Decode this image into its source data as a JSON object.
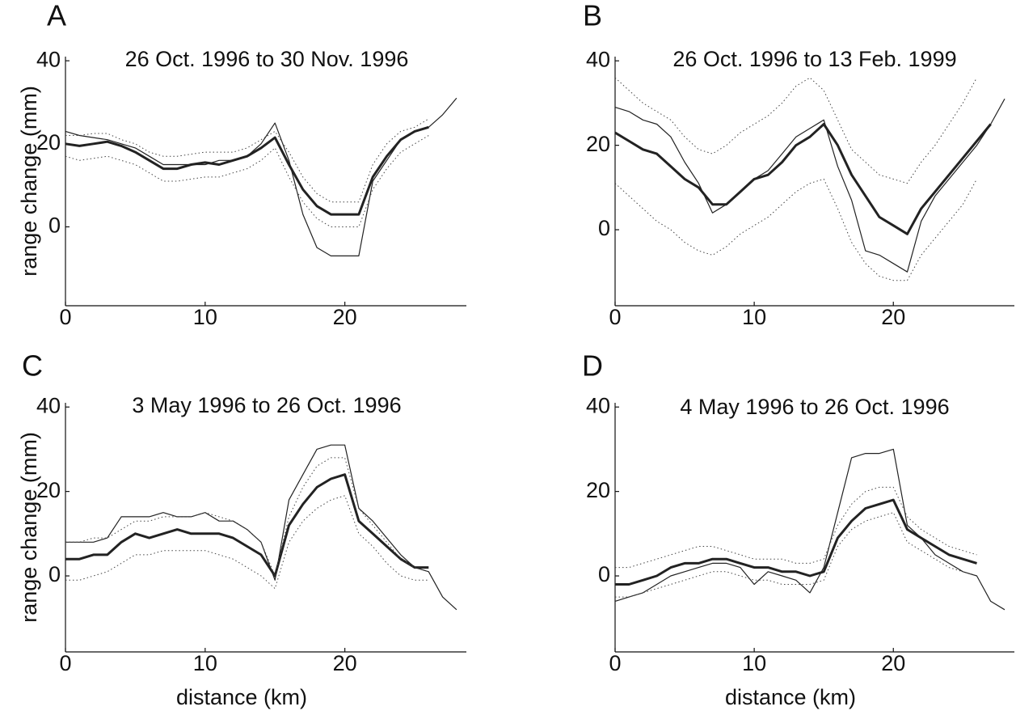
{
  "chart_data": [
    {
      "type": "line",
      "panel": "A",
      "title": "26 Oct. 1996 to 30 Nov. 1996",
      "y_label": "range change (mm)",
      "x": [
        0,
        1,
        2,
        3,
        4,
        5,
        6,
        7,
        8,
        9,
        10,
        11,
        12,
        13,
        14,
        15,
        16,
        17,
        18,
        19,
        20,
        21,
        22,
        23,
        24,
        25,
        26,
        27,
        28
      ],
      "xlim": [
        0,
        28.7
      ],
      "xticks": [
        0,
        10,
        20
      ],
      "ylim": [
        -19,
        41
      ],
      "yticks": [
        0,
        20,
        40
      ],
      "series": [
        {
          "color": "#222222",
          "linewidth": 1.2,
          "style": "solid",
          "values": [
            23,
            22,
            21.5,
            21,
            20,
            19,
            17,
            15,
            15,
            15,
            15,
            16,
            16,
            17,
            20,
            25,
            16,
            3,
            -5,
            -7,
            -7,
            -7,
            11,
            16,
            21,
            23,
            24,
            27,
            31
          ]
        },
        {
          "color": "#222222",
          "linewidth": 3,
          "style": "solid",
          "values": [
            20,
            19.5,
            20,
            20.5,
            19.5,
            18,
            16,
            14,
            14,
            15,
            15.5,
            15,
            16,
            17,
            19,
            21.5,
            15,
            9,
            5,
            3,
            3,
            3,
            12,
            17,
            21,
            23,
            24,
            null,
            null
          ]
        },
        {
          "color": "#444444",
          "linewidth": 1,
          "style": "dotted",
          "values": [
            22,
            22,
            22.5,
            22.5,
            21,
            20,
            18,
            17,
            17,
            17.5,
            18,
            18,
            18,
            19,
            21,
            23,
            18,
            12,
            8,
            6,
            6,
            6,
            15,
            20,
            23,
            24,
            26,
            null,
            null
          ]
        },
        {
          "color": "#444444",
          "linewidth": 1,
          "style": "dotted",
          "values": [
            17,
            16,
            16.5,
            17,
            16,
            15,
            13,
            11,
            11,
            11.5,
            12,
            12,
            13,
            14,
            16,
            19,
            12,
            6,
            2,
            0,
            0,
            0,
            9,
            14,
            18,
            20,
            22,
            null,
            null
          ]
        }
      ]
    },
    {
      "type": "line",
      "panel": "B",
      "title": "26 Oct. 1996 to 13 Feb. 1999",
      "x": [
        0,
        1,
        2,
        3,
        4,
        5,
        6,
        7,
        8,
        9,
        10,
        11,
        12,
        13,
        14,
        15,
        16,
        17,
        18,
        19,
        20,
        21,
        22,
        23,
        24,
        25,
        26,
        27,
        28
      ],
      "xlim": [
        0,
        28.7
      ],
      "xticks": [
        0,
        10,
        20
      ],
      "ylim": [
        -18,
        41
      ],
      "yticks": [
        0,
        20,
        40
      ],
      "series": [
        {
          "color": "#222222",
          "linewidth": 1.2,
          "style": "solid",
          "values": [
            29,
            28,
            26,
            25,
            22,
            16,
            11,
            4,
            6,
            9,
            12,
            14,
            18,
            22,
            24,
            26,
            15,
            7,
            -5,
            -6,
            -8,
            -10,
            2,
            8,
            12,
            16,
            20,
            25,
            31
          ]
        },
        {
          "color": "#222222",
          "linewidth": 3,
          "style": "solid",
          "values": [
            23,
            21,
            19,
            18,
            15,
            12,
            10,
            6,
            6,
            9,
            12,
            13,
            16,
            20,
            22,
            25,
            20,
            13,
            8,
            3,
            1,
            -1,
            5,
            9,
            13,
            17,
            21,
            25,
            null
          ]
        },
        {
          "color": "#444444",
          "linewidth": 1,
          "style": "dotted",
          "values": [
            36,
            33,
            30,
            28,
            26,
            22,
            19,
            18,
            20,
            23,
            25,
            27,
            30,
            34,
            36,
            33,
            26,
            19,
            16,
            13,
            12,
            11,
            16,
            20,
            25,
            30,
            36,
            null,
            null
          ]
        },
        {
          "color": "#444444",
          "linewidth": 1,
          "style": "dotted",
          "values": [
            11,
            8,
            5,
            2,
            0,
            -3,
            -5,
            -6,
            -4,
            -1,
            1,
            3,
            6,
            9,
            11,
            12,
            5,
            -3,
            -8,
            -11,
            -12,
            -12,
            -6,
            -2,
            2,
            6,
            12,
            null,
            null
          ]
        }
      ]
    },
    {
      "type": "line",
      "panel": "C",
      "title": "3 May 1996 to 26 Oct. 1996",
      "y_label": "range change (mm)",
      "x_label": "distance (km)",
      "x": [
        0,
        1,
        2,
        3,
        4,
        5,
        6,
        7,
        8,
        9,
        10,
        11,
        12,
        13,
        14,
        15,
        16,
        17,
        18,
        19,
        20,
        21,
        22,
        23,
        24,
        25,
        26,
        27,
        28
      ],
      "xlim": [
        0,
        28.7
      ],
      "xticks": [
        0,
        10,
        20
      ],
      "ylim": [
        -18,
        41
      ],
      "yticks": [
        0,
        20,
        40
      ],
      "series": [
        {
          "color": "#222222",
          "linewidth": 1.2,
          "style": "solid",
          "values": [
            8,
            8,
            8,
            9,
            14,
            14,
            14,
            15,
            14,
            14,
            15,
            13,
            13,
            11,
            8,
            -1,
            18,
            24,
            30,
            31,
            31,
            16,
            13,
            9,
            5,
            2,
            1,
            -5,
            -8
          ]
        },
        {
          "color": "#222222",
          "linewidth": 3,
          "style": "solid",
          "values": [
            4,
            4,
            5,
            5,
            8,
            10,
            9,
            10,
            11,
            10,
            10,
            10,
            9,
            7,
            5,
            0,
            12,
            17,
            21,
            23,
            24,
            13,
            10,
            7,
            4,
            2,
            2,
            null,
            null
          ]
        },
        {
          "color": "#444444",
          "linewidth": 1,
          "style": "dotted",
          "values": [
            8,
            8,
            9,
            9,
            11,
            13,
            13,
            14,
            14,
            14,
            15,
            14,
            13,
            11,
            8,
            0,
            14,
            21,
            26,
            28,
            28,
            16,
            12,
            8,
            4,
            2,
            1,
            null,
            null
          ]
        },
        {
          "color": "#444444",
          "linewidth": 1,
          "style": "dotted",
          "values": [
            -1,
            -1,
            0,
            1,
            3,
            5,
            5,
            6,
            6,
            6,
            6,
            5,
            4,
            2,
            0,
            -3,
            8,
            13,
            16,
            18,
            19,
            10,
            7,
            3,
            0,
            -1,
            -1,
            null,
            null
          ]
        }
      ]
    },
    {
      "type": "line",
      "panel": "D",
      "title": "4 May 1996 to 26 Oct. 1996",
      "x_label": "distance (km)",
      "x": [
        0,
        1,
        2,
        3,
        4,
        5,
        6,
        7,
        8,
        9,
        10,
        11,
        12,
        13,
        14,
        15,
        16,
        17,
        18,
        19,
        20,
        21,
        22,
        23,
        24,
        25,
        26,
        27,
        28
      ],
      "xlim": [
        0,
        28.7
      ],
      "xticks": [
        0,
        10,
        20
      ],
      "ylim": [
        -18,
        41
      ],
      "yticks": [
        0,
        20,
        40
      ],
      "series": [
        {
          "color": "#222222",
          "linewidth": 1.2,
          "style": "solid",
          "values": [
            -6,
            -5,
            -4,
            -2,
            0,
            1,
            2,
            3,
            3,
            2,
            -2,
            1,
            0,
            -1,
            -4,
            2,
            15,
            28,
            29,
            29,
            30,
            12,
            9,
            5,
            3,
            1,
            0,
            -6,
            -8
          ]
        },
        {
          "color": "#222222",
          "linewidth": 3,
          "style": "solid",
          "values": [
            -2,
            -2,
            -1,
            0,
            2,
            3,
            3,
            4,
            4,
            3,
            2,
            2,
            1,
            1,
            0,
            1,
            9,
            13,
            16,
            17,
            18,
            11,
            9,
            7,
            5,
            4,
            3,
            null,
            null
          ]
        },
        {
          "color": "#444444",
          "linewidth": 1,
          "style": "dotted",
          "values": [
            2,
            2,
            3,
            4,
            5,
            6,
            7,
            7,
            6,
            5,
            4,
            4,
            4,
            3,
            3,
            4,
            12,
            17,
            20,
            21,
            21,
            14,
            11,
            9,
            7,
            6,
            5,
            null,
            null
          ]
        },
        {
          "color": "#444444",
          "linewidth": 1,
          "style": "dotted",
          "values": [
            -5,
            -5,
            -4,
            -3,
            -2,
            -1,
            0,
            1,
            1,
            0,
            -1,
            -1,
            -2,
            -2,
            -2,
            -1,
            7,
            11,
            13,
            14,
            15,
            8,
            6,
            4,
            2,
            1,
            0,
            null,
            null
          ]
        }
      ]
    }
  ]
}
